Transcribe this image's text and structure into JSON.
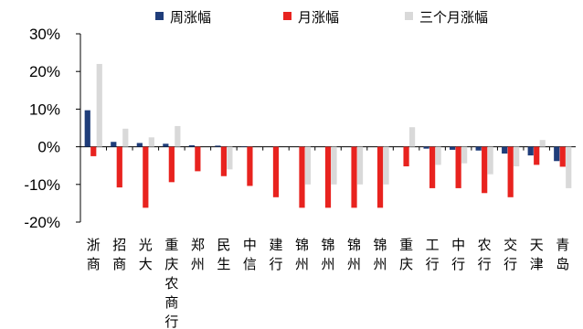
{
  "chart_data": {
    "type": "bar",
    "categories": [
      "浙商",
      "招商",
      "光大",
      "重庆农商行",
      "郑州",
      "民生",
      "中信",
      "建行",
      "锦州",
      "锦州",
      "锦州",
      "锦州",
      "重庆",
      "工行",
      "中行",
      "农行",
      "交行",
      "天津",
      "青岛"
    ],
    "series": [
      {
        "name": "周涨幅",
        "color": "#1f3d7a",
        "values": [
          9.7,
          1.3,
          1.0,
          0.8,
          0.4,
          0.3,
          0.1,
          0.0,
          0.0,
          0.0,
          0.0,
          0.0,
          0.0,
          -0.5,
          -0.8,
          -1.0,
          -1.8,
          -2.3,
          -3.8
        ]
      },
      {
        "name": "月涨幅",
        "color": "#e8231f",
        "values": [
          -2.5,
          -10.8,
          -16.2,
          -9.4,
          -6.5,
          -7.8,
          -10.4,
          -13.4,
          -16.2,
          -16.2,
          -16.2,
          -16.2,
          -5.2,
          -11.0,
          -11.0,
          -12.3,
          -13.4,
          -4.8,
          -5.3
        ]
      },
      {
        "name": "三个月涨幅",
        "color": "#d9d9d9",
        "values": [
          22.0,
          4.8,
          2.5,
          5.5,
          0.0,
          -6.0,
          0.0,
          0.0,
          -10.0,
          -10.0,
          -10.0,
          -10.0,
          5.2,
          -4.8,
          -4.4,
          -7.3,
          -5.2,
          1.8,
          -11.0
        ]
      }
    ],
    "yticks": [
      "30%",
      "20%",
      "10%",
      "0%",
      "-10%",
      "-20%"
    ],
    "ylim": [
      -20,
      30
    ],
    "legend_position": "top"
  }
}
